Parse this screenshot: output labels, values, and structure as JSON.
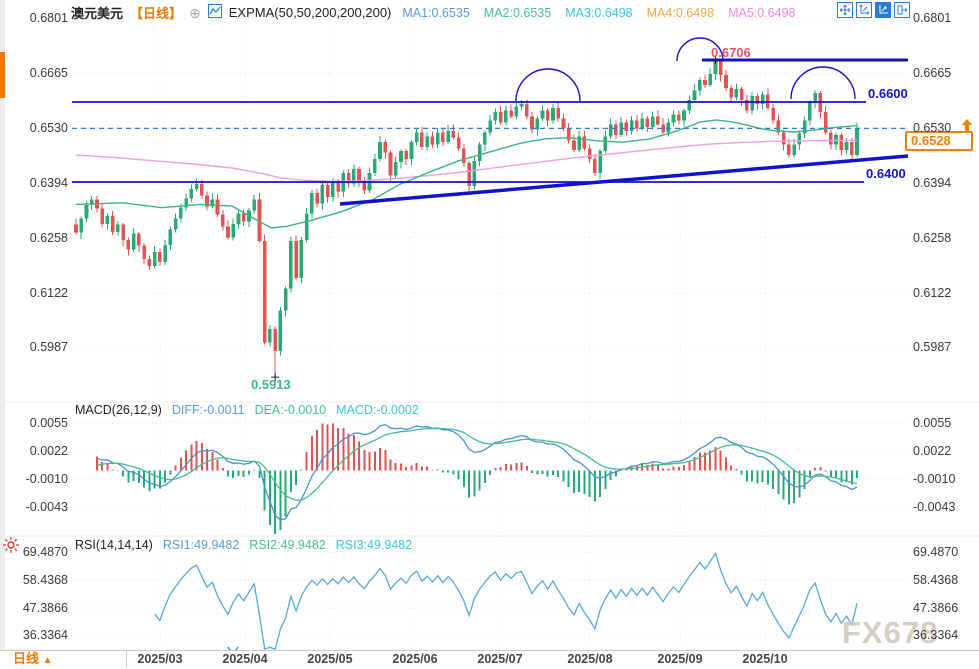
{
  "header": {
    "symbol": "澳元美元",
    "period": "【日线】",
    "indicator_name": "EXPMA(50,50,200,200,200)",
    "ma_values": [
      {
        "label": "MA1:0.6535",
        "color": "#5b9bd5"
      },
      {
        "label": "MA2:0.6535",
        "color": "#46c28e"
      },
      {
        "label": "MA3:0.6498",
        "color": "#3ec6e0"
      },
      {
        "label": "MA4:0.6498",
        "color": "#f6a543"
      },
      {
        "label": "MA5:0.6498",
        "color": "#f08ae0"
      }
    ]
  },
  "toolbar": {
    "icons": [
      "move-icon",
      "axis-adjust-icon",
      "axis-scale-icon",
      "pop-out-icon"
    ]
  },
  "main_axis": {
    "left_labels": [
      "0.6801",
      "0.6665",
      "0.6530",
      "0.6394",
      "0.6258",
      "0.6122",
      "0.5987"
    ],
    "right_labels": [
      "0.6801",
      "0.6665",
      "0.6530",
      "0.6394",
      "0.6258",
      "0.6122",
      "0.5987"
    ]
  },
  "annotations": {
    "resistance_top": "0.6706",
    "resistance": "0.6600",
    "support": "0.6400",
    "low_label": "0.5913",
    "current_price": "0.6528"
  },
  "macd_panel": {
    "title": "MACD(26,12,9)",
    "diff": "DIFF:-0.0011",
    "dea": "DEA:-0.0010",
    "macd": "MACD:-0.0002",
    "axis_labels": [
      "0.0055",
      "0.0022",
      "-0.0010",
      "-0.0043"
    ]
  },
  "rsi_panel": {
    "title": "RSI(14,14,14)",
    "rsi1": "RSI1:49.9482",
    "rsi2": "RSI2:49.9482",
    "rsi3": "RSI3:49.9482",
    "axis_labels": [
      "69.4870",
      "58.4368",
      "47.3866",
      "36.3364"
    ]
  },
  "x_axis": {
    "months": [
      "2025/03",
      "2025/04",
      "2025/05",
      "2025/06",
      "2025/07",
      "2025/08",
      "2025/09",
      "2025/10"
    ]
  },
  "bottom_bar": {
    "period_label": "日线",
    "arrow": "▲"
  },
  "watermark": "FX678",
  "colors": {
    "candle_up": "#2aa876",
    "candle_down": "#e25352",
    "ma_fast": "#3cb584",
    "ma_slow": "#efa0dc",
    "annotation_blue": "#1212cc",
    "dashed_blue": "#2e7bd6",
    "diff_line": "#4a90d9",
    "dea_line": "#44bd8c",
    "rsi_line": "#58a8d8",
    "price_box_orange": "#f08000",
    "label_red": "#e0556a",
    "label_green": "#3cb888"
  },
  "chart_data": {
    "type": "candlestick",
    "pair": "AUD/USD (澳元美元)",
    "timeframe": "daily",
    "title": "澳元美元 【日线】 EXPMA(50,50,200,200,200)",
    "price_axis_ticks": [
      0.6801,
      0.6665,
      0.653,
      0.6394,
      0.6258,
      0.6122,
      0.5987
    ],
    "key_levels": {
      "resistance_top": 0.6706,
      "resistance": 0.66,
      "support": 0.64,
      "record_low": 0.5913,
      "last_price": 0.6528
    },
    "x_months": [
      "2025/03",
      "2025/04",
      "2025/05",
      "2025/06",
      "2025/07",
      "2025/08",
      "2025/09",
      "2025/10"
    ],
    "closes": [
      0.627,
      0.6305,
      0.6338,
      0.6352,
      0.633,
      0.6292,
      0.6312,
      0.6272,
      0.629,
      0.6252,
      0.6228,
      0.6268,
      0.6238,
      0.6205,
      0.6188,
      0.6222,
      0.6198,
      0.624,
      0.6278,
      0.6305,
      0.6332,
      0.6355,
      0.6378,
      0.639,
      0.6362,
      0.6335,
      0.6352,
      0.6315,
      0.6285,
      0.6258,
      0.6292,
      0.6318,
      0.6298,
      0.6325,
      0.6352,
      0.625,
      0.5998,
      0.6032,
      0.5978,
      0.6078,
      0.6132,
      0.625,
      0.6158,
      0.6252,
      0.6318,
      0.6368,
      0.6342,
      0.6388,
      0.6358,
      0.6398,
      0.6372,
      0.6418,
      0.6392,
      0.6428,
      0.6398,
      0.6375,
      0.6418,
      0.6452,
      0.6495,
      0.6468,
      0.6412,
      0.6445,
      0.6472,
      0.6452,
      0.6495,
      0.6518,
      0.6482,
      0.6508,
      0.6488,
      0.6518,
      0.6495,
      0.6522,
      0.6505,
      0.6478,
      0.6442,
      0.6385,
      0.6448,
      0.6488,
      0.6518,
      0.6548,
      0.6568,
      0.6542,
      0.6572,
      0.6558,
      0.6582,
      0.6588,
      0.6558,
      0.6525,
      0.6552,
      0.6572,
      0.6548,
      0.6578,
      0.6552,
      0.6528,
      0.6498,
      0.6475,
      0.6508,
      0.6478,
      0.6452,
      0.6418,
      0.6472,
      0.6508,
      0.6538,
      0.6512,
      0.6542,
      0.6522,
      0.6548,
      0.6528,
      0.6552,
      0.6532,
      0.6558,
      0.6538,
      0.6518,
      0.6542,
      0.6562,
      0.6548,
      0.6572,
      0.6598,
      0.6622,
      0.6648,
      0.6635,
      0.6662,
      0.6695,
      0.666,
      0.6628,
      0.6605,
      0.6625,
      0.6598,
      0.6572,
      0.6608,
      0.6588,
      0.6612,
      0.6578,
      0.6548,
      0.6518,
      0.6488,
      0.6462,
      0.6488,
      0.6515,
      0.6548,
      0.6592,
      0.6615,
      0.6568,
      0.6518,
      0.6488,
      0.6512,
      0.6475,
      0.6495,
      0.6462,
      0.6528
    ],
    "low_extreme": 0.5913,
    "high_extreme": 0.6706,
    "ma_fast_points": [
      [
        0.0,
        0.634
      ],
      [
        0.06,
        0.6344
      ],
      [
        0.11,
        0.6332
      ],
      [
        0.16,
        0.634
      ],
      [
        0.2,
        0.6336
      ],
      [
        0.225,
        0.6308
      ],
      [
        0.25,
        0.6282
      ],
      [
        0.27,
        0.6286
      ],
      [
        0.3,
        0.63
      ],
      [
        0.34,
        0.6322
      ],
      [
        0.38,
        0.6352
      ],
      [
        0.415,
        0.639
      ],
      [
        0.455,
        0.6422
      ],
      [
        0.49,
        0.6448
      ],
      [
        0.53,
        0.647
      ],
      [
        0.57,
        0.6492
      ],
      [
        0.6,
        0.6502
      ],
      [
        0.63,
        0.6505
      ],
      [
        0.67,
        0.6497
      ],
      [
        0.7,
        0.6494
      ],
      [
        0.735,
        0.6502
      ],
      [
        0.77,
        0.6522
      ],
      [
        0.8,
        0.6544
      ],
      [
        0.82,
        0.6549
      ],
      [
        0.84,
        0.6544
      ],
      [
        0.86,
        0.6536
      ],
      [
        0.875,
        0.6528
      ],
      [
        0.895,
        0.6522
      ],
      [
        0.92,
        0.6519
      ],
      [
        0.945,
        0.6524
      ],
      [
        0.97,
        0.653
      ],
      [
        1.0,
        0.6535
      ]
    ],
    "ma_slow_points": [
      [
        0.0,
        0.6462
      ],
      [
        0.05,
        0.6456
      ],
      [
        0.1,
        0.6448
      ],
      [
        0.15,
        0.644
      ],
      [
        0.2,
        0.643
      ],
      [
        0.24,
        0.6416
      ],
      [
        0.26,
        0.6406
      ],
      [
        0.29,
        0.64
      ],
      [
        0.33,
        0.6397
      ],
      [
        0.37,
        0.6399
      ],
      [
        0.41,
        0.6404
      ],
      [
        0.45,
        0.6411
      ],
      [
        0.49,
        0.6419
      ],
      [
        0.53,
        0.6429
      ],
      [
        0.57,
        0.6439
      ],
      [
        0.61,
        0.6449
      ],
      [
        0.65,
        0.6458
      ],
      [
        0.69,
        0.6466
      ],
      [
        0.73,
        0.6474
      ],
      [
        0.77,
        0.6482
      ],
      [
        0.81,
        0.6489
      ],
      [
        0.85,
        0.6493
      ],
      [
        0.89,
        0.6496
      ],
      [
        0.93,
        0.6497
      ],
      [
        0.97,
        0.6498
      ],
      [
        1.0,
        0.6498
      ]
    ],
    "macd": {
      "params": [
        26,
        12,
        9
      ],
      "last": {
        "diff": -0.0011,
        "dea": -0.001,
        "macd": -0.0002
      },
      "axis_ticks": [
        0.0055,
        0.0022,
        -0.001,
        -0.0043
      ]
    },
    "rsi": {
      "params": [
        14,
        14,
        14
      ],
      "last": 49.9482,
      "axis_ticks": [
        69.487,
        58.4368,
        47.3866,
        36.3364
      ]
    }
  }
}
